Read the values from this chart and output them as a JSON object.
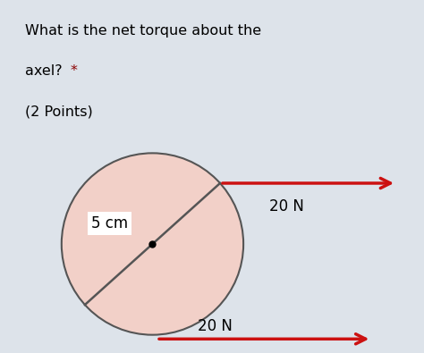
{
  "title_line1": "What is the net torque about the",
  "title_line2_main": "axel? ",
  "title_line2_star": "*",
  "title_line3": "(2 Points)",
  "title_color": "#000000",
  "asterisk_color": "#8b0000",
  "header_bg": "#dde3ea",
  "diagram_bg": "#f8f8f8",
  "circle_fill": "#f2d0c8",
  "circle_edge": "#555555",
  "arrow_color": "#cc1111",
  "arrow1_label": "20 N",
  "arrow2_label": "20 N",
  "label_5cm": "5 cm",
  "font_size_title": 11.5,
  "font_size_label": 12,
  "font_size_5cm": 12
}
